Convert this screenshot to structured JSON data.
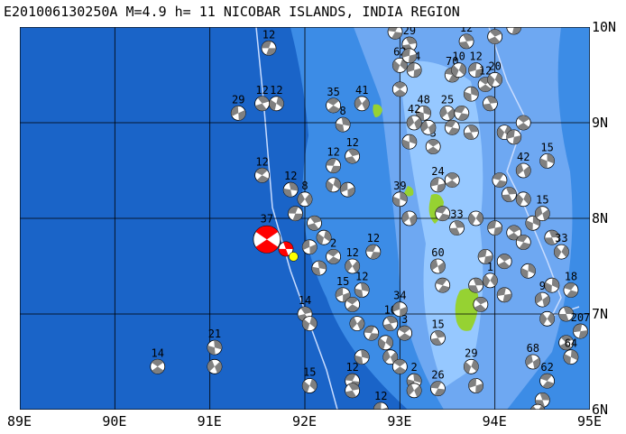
{
  "title": "E201006130250A M=4.9 h= 11 NICOBAR ISLANDS, INDIA REGION",
  "map": {
    "extent": {
      "lon": [
        89,
        95
      ],
      "lat": [
        6,
        10
      ]
    },
    "lon_labels": [
      "89E",
      "90E",
      "91E",
      "92E",
      "93E",
      "94E",
      "95E"
    ],
    "lat_labels": [
      "10N",
      "9N",
      "8N",
      "7N",
      "6N"
    ],
    "colors": {
      "deep_ocean": "#1464c8",
      "mid_ocean": "#3c8ce6",
      "shallow": "#82beff",
      "land": "#96d232",
      "plate_boundary": "#c8dcff",
      "highlight_event": "#ff0000",
      "epicenter": "#ffff00"
    },
    "highlight": {
      "lon": 91.6,
      "lat": 7.78,
      "label": "37"
    },
    "epicenter": {
      "lon": 91.88,
      "lat": 7.6
    },
    "events": [
      {
        "lon": 91.62,
        "lat": 9.78,
        "label": "12"
      },
      {
        "lon": 91.55,
        "lat": 9.2,
        "label": "12"
      },
      {
        "lon": 91.7,
        "lat": 9.2,
        "label": "12"
      },
      {
        "lon": 91.3,
        "lat": 9.1,
        "label": "29"
      },
      {
        "lon": 91.55,
        "lat": 8.45,
        "label": "12"
      },
      {
        "lon": 91.85,
        "lat": 8.3,
        "label": "12"
      },
      {
        "lon": 92.0,
        "lat": 8.2,
        "label": "8"
      },
      {
        "lon": 91.9,
        "lat": 8.05,
        "label": ""
      },
      {
        "lon": 92.1,
        "lat": 7.95,
        "label": ""
      },
      {
        "lon": 92.2,
        "lat": 7.8,
        "label": ""
      },
      {
        "lon": 92.05,
        "lat": 7.7,
        "label": ""
      },
      {
        "lon": 92.3,
        "lat": 7.6,
        "label": "2"
      },
      {
        "lon": 92.15,
        "lat": 7.48,
        "label": ""
      },
      {
        "lon": 92.5,
        "lat": 7.5,
        "label": "12"
      },
      {
        "lon": 92.3,
        "lat": 8.55,
        "label": "12"
      },
      {
        "lon": 92.5,
        "lat": 8.65,
        "label": "12"
      },
      {
        "lon": 92.3,
        "lat": 8.35,
        "label": ""
      },
      {
        "lon": 92.45,
        "lat": 8.3,
        "label": ""
      },
      {
        "lon": 92.3,
        "lat": 9.18,
        "label": "35"
      },
      {
        "lon": 92.4,
        "lat": 8.98,
        "label": "8"
      },
      {
        "lon": 92.6,
        "lat": 9.2,
        "label": "41"
      },
      {
        "lon": 92.72,
        "lat": 7.65,
        "label": "12"
      },
      {
        "lon": 92.0,
        "lat": 7.0,
        "label": "14"
      },
      {
        "lon": 92.05,
        "lat": 6.9,
        "label": ""
      },
      {
        "lon": 92.4,
        "lat": 7.2,
        "label": "15"
      },
      {
        "lon": 92.5,
        "lat": 7.1,
        "label": ""
      },
      {
        "lon": 92.6,
        "lat": 7.25,
        "label": "12"
      },
      {
        "lon": 92.55,
        "lat": 6.9,
        "label": ""
      },
      {
        "lon": 92.7,
        "lat": 6.8,
        "label": ""
      },
      {
        "lon": 92.9,
        "lat": 6.9,
        "label": "16"
      },
      {
        "lon": 92.85,
        "lat": 6.7,
        "label": ""
      },
      {
        "lon": 93.0,
        "lat": 7.05,
        "label": "34"
      },
      {
        "lon": 93.05,
        "lat": 6.8,
        "label": "3"
      },
      {
        "lon": 92.6,
        "lat": 6.55,
        "label": ""
      },
      {
        "lon": 92.9,
        "lat": 6.55,
        "label": ""
      },
      {
        "lon": 92.5,
        "lat": 6.3,
        "label": "12"
      },
      {
        "lon": 92.5,
        "lat": 6.2,
        "label": ""
      },
      {
        "lon": 92.05,
        "lat": 6.25,
        "label": "15"
      },
      {
        "lon": 92.8,
        "lat": 6.0,
        "label": "12"
      },
      {
        "lon": 93.0,
        "lat": 6.45,
        "label": ""
      },
      {
        "lon": 93.15,
        "lat": 6.3,
        "label": "2"
      },
      {
        "lon": 93.15,
        "lat": 6.2,
        "label": ""
      },
      {
        "lon": 93.4,
        "lat": 6.22,
        "label": "26"
      },
      {
        "lon": 93.4,
        "lat": 6.75,
        "label": "15"
      },
      {
        "lon": 93.75,
        "lat": 6.45,
        "label": "29"
      },
      {
        "lon": 93.8,
        "lat": 6.25,
        "label": ""
      },
      {
        "lon": 90.45,
        "lat": 6.45,
        "label": "14"
      },
      {
        "lon": 91.05,
        "lat": 6.65,
        "label": "21"
      },
      {
        "lon": 91.05,
        "lat": 6.45,
        "label": ""
      },
      {
        "lon": 92.95,
        "lat": 9.95,
        "label": ""
      },
      {
        "lon": 93.1,
        "lat": 9.82,
        "label": "29"
      },
      {
        "lon": 93.0,
        "lat": 9.6,
        "label": "62"
      },
      {
        "lon": 93.15,
        "lat": 9.55,
        "label": "54"
      },
      {
        "lon": 93.0,
        "lat": 9.35,
        "label": ""
      },
      {
        "lon": 93.25,
        "lat": 9.1,
        "label": "48"
      },
      {
        "lon": 93.15,
        "lat": 9.0,
        "label": "42"
      },
      {
        "lon": 93.55,
        "lat": 9.5,
        "label": "70"
      },
      {
        "lon": 93.7,
        "lat": 9.85,
        "label": "12"
      },
      {
        "lon": 93.62,
        "lat": 9.55,
        "label": "10"
      },
      {
        "lon": 93.8,
        "lat": 9.55,
        "label": "12"
      },
      {
        "lon": 93.9,
        "lat": 9.4,
        "label": "12"
      },
      {
        "lon": 93.75,
        "lat": 9.3,
        "label": ""
      },
      {
        "lon": 93.5,
        "lat": 9.1,
        "label": "25"
      },
      {
        "lon": 93.65,
        "lat": 9.1,
        "label": ""
      },
      {
        "lon": 93.95,
        "lat": 9.2,
        "label": ""
      },
      {
        "lon": 94.0,
        "lat": 9.45,
        "label": "20"
      },
      {
        "lon": 93.1,
        "lat": 9.7,
        "label": ""
      },
      {
        "lon": 93.35,
        "lat": 8.75,
        "label": "3"
      },
      {
        "lon": 93.1,
        "lat": 8.8,
        "label": ""
      },
      {
        "lon": 93.3,
        "lat": 8.95,
        "label": ""
      },
      {
        "lon": 93.55,
        "lat": 8.95,
        "label": ""
      },
      {
        "lon": 93.75,
        "lat": 8.9,
        "label": ""
      },
      {
        "lon": 94.1,
        "lat": 8.9,
        "label": ""
      },
      {
        "lon": 94.2,
        "lat": 8.85,
        "label": ""
      },
      {
        "lon": 94.3,
        "lat": 9.0,
        "label": ""
      },
      {
        "lon": 94.55,
        "lat": 8.6,
        "label": "15"
      },
      {
        "lon": 94.3,
        "lat": 8.5,
        "label": "42"
      },
      {
        "lon": 94.05,
        "lat": 8.4,
        "label": ""
      },
      {
        "lon": 94.15,
        "lat": 8.25,
        "label": ""
      },
      {
        "lon": 94.3,
        "lat": 8.2,
        "label": ""
      },
      {
        "lon": 93.4,
        "lat": 8.35,
        "label": "24"
      },
      {
        "lon": 93.55,
        "lat": 8.4,
        "label": ""
      },
      {
        "lon": 93.0,
        "lat": 8.2,
        "label": "39"
      },
      {
        "lon": 93.1,
        "lat": 8.0,
        "label": ""
      },
      {
        "lon": 93.45,
        "lat": 8.05,
        "label": ""
      },
      {
        "lon": 93.6,
        "lat": 7.9,
        "label": "33"
      },
      {
        "lon": 93.8,
        "lat": 8.0,
        "label": ""
      },
      {
        "lon": 94.0,
        "lat": 7.9,
        "label": ""
      },
      {
        "lon": 94.2,
        "lat": 7.85,
        "label": ""
      },
      {
        "lon": 94.4,
        "lat": 7.95,
        "label": ""
      },
      {
        "lon": 94.5,
        "lat": 8.05,
        "label": "15"
      },
      {
        "lon": 94.3,
        "lat": 7.75,
        "label": ""
      },
      {
        "lon": 94.6,
        "lat": 7.8,
        "label": ""
      },
      {
        "lon": 94.7,
        "lat": 7.65,
        "label": "33"
      },
      {
        "lon": 93.9,
        "lat": 7.6,
        "label": ""
      },
      {
        "lon": 94.1,
        "lat": 7.55,
        "label": ""
      },
      {
        "lon": 94.35,
        "lat": 7.45,
        "label": ""
      },
      {
        "lon": 93.4,
        "lat": 7.5,
        "label": "60"
      },
      {
        "lon": 93.45,
        "lat": 7.3,
        "label": ""
      },
      {
        "lon": 93.8,
        "lat": 7.3,
        "label": ""
      },
      {
        "lon": 93.95,
        "lat": 7.35,
        "label": "1"
      },
      {
        "lon": 94.1,
        "lat": 7.2,
        "label": ""
      },
      {
        "lon": 93.85,
        "lat": 7.1,
        "label": ""
      },
      {
        "lon": 94.6,
        "lat": 7.3,
        "label": ""
      },
      {
        "lon": 94.5,
        "lat": 7.15,
        "label": "9"
      },
      {
        "lon": 94.8,
        "lat": 7.25,
        "label": "18"
      },
      {
        "lon": 94.75,
        "lat": 7.0,
        "label": ""
      },
      {
        "lon": 94.55,
        "lat": 6.95,
        "label": ""
      },
      {
        "lon": 94.9,
        "lat": 6.82,
        "label": "207"
      },
      {
        "lon": 94.75,
        "lat": 6.7,
        "label": ""
      },
      {
        "lon": 94.8,
        "lat": 6.55,
        "label": "64"
      },
      {
        "lon": 94.4,
        "lat": 6.5,
        "label": "68"
      },
      {
        "lon": 94.55,
        "lat": 6.3,
        "label": "62"
      },
      {
        "lon": 94.5,
        "lat": 6.1,
        "label": ""
      },
      {
        "lon": 94.45,
        "lat": 5.98,
        "label": ""
      },
      {
        "lon": 94.2,
        "lat": 10.0,
        "label": "12"
      },
      {
        "lon": 94.0,
        "lat": 9.9,
        "label": ""
      }
    ]
  }
}
